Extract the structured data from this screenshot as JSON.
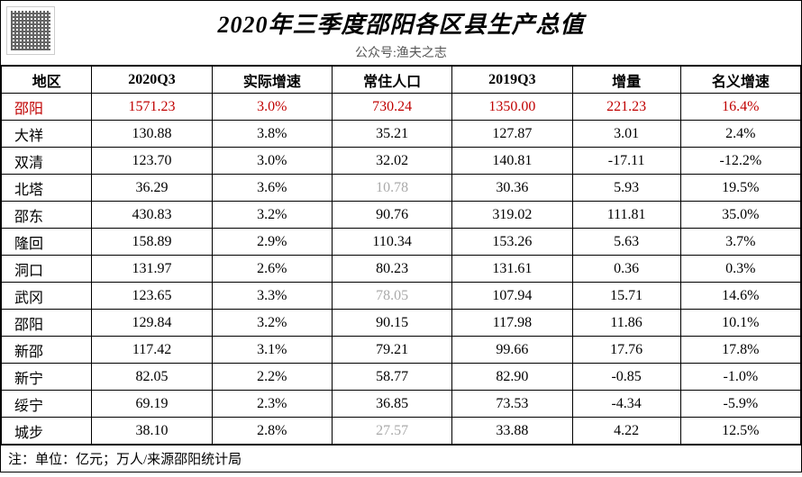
{
  "title": "2020年三季度邵阳各区县生产总值",
  "subtitle": "公众号:渔夫之志",
  "footer": "注：单位：亿元；万人/来源邵阳统计局",
  "columns": [
    "地区",
    "2020Q3",
    "实际增速",
    "常住人口",
    "2019Q3",
    "增量",
    "名义增速"
  ],
  "rows": [
    {
      "region": "邵阳",
      "q3_2020": "1571.23",
      "real": "3.0%",
      "pop": "730.24",
      "q3_2019": "1350.00",
      "inc": "221.23",
      "nom": "16.4%",
      "hl": true
    },
    {
      "region": "大祥",
      "q3_2020": "130.88",
      "real": "3.8%",
      "pop": "35.21",
      "q3_2019": "127.87",
      "inc": "3.01",
      "nom": "2.4%"
    },
    {
      "region": "双清",
      "q3_2020": "123.70",
      "real": "3.0%",
      "pop": "32.02",
      "q3_2019": "140.81",
      "inc": "-17.11",
      "nom": "-12.2%"
    },
    {
      "region": "北塔",
      "q3_2020": "36.29",
      "real": "3.6%",
      "pop": "10.78",
      "pop_grey": true,
      "q3_2019": "30.36",
      "inc": "5.93",
      "nom": "19.5%"
    },
    {
      "region": "邵东",
      "q3_2020": "430.83",
      "real": "3.2%",
      "pop": "90.76",
      "q3_2019": "319.02",
      "inc": "111.81",
      "nom": "35.0%"
    },
    {
      "region": "隆回",
      "q3_2020": "158.89",
      "real": "2.9%",
      "pop": "110.34",
      "q3_2019": "153.26",
      "inc": "5.63",
      "nom": "3.7%"
    },
    {
      "region": "洞口",
      "q3_2020": "131.97",
      "real": "2.6%",
      "pop": "80.23",
      "q3_2019": "131.61",
      "inc": "0.36",
      "nom": "0.3%"
    },
    {
      "region": "武冈",
      "q3_2020": "123.65",
      "real": "3.3%",
      "pop": "78.05",
      "pop_grey": true,
      "q3_2019": "107.94",
      "inc": "15.71",
      "nom": "14.6%"
    },
    {
      "region": "邵阳",
      "q3_2020": "129.84",
      "real": "3.2%",
      "pop": "90.15",
      "q3_2019": "117.98",
      "inc": "11.86",
      "nom": "10.1%"
    },
    {
      "region": "新邵",
      "q3_2020": "117.42",
      "real": "3.1%",
      "pop": "79.21",
      "q3_2019": "99.66",
      "inc": "17.76",
      "nom": "17.8%"
    },
    {
      "region": "新宁",
      "q3_2020": "82.05",
      "real": "2.2%",
      "pop": "58.77",
      "q3_2019": "82.90",
      "inc": "-0.85",
      "nom": "-1.0%"
    },
    {
      "region": "绥宁",
      "q3_2020": "69.19",
      "real": "2.3%",
      "pop": "36.85",
      "q3_2019": "73.53",
      "inc": "-4.34",
      "nom": "-5.9%"
    },
    {
      "region": "城步",
      "q3_2020": "38.10",
      "real": "2.8%",
      "pop": "27.57",
      "pop_grey": true,
      "q3_2019": "33.88",
      "inc": "4.22",
      "nom": "12.5%"
    }
  ]
}
